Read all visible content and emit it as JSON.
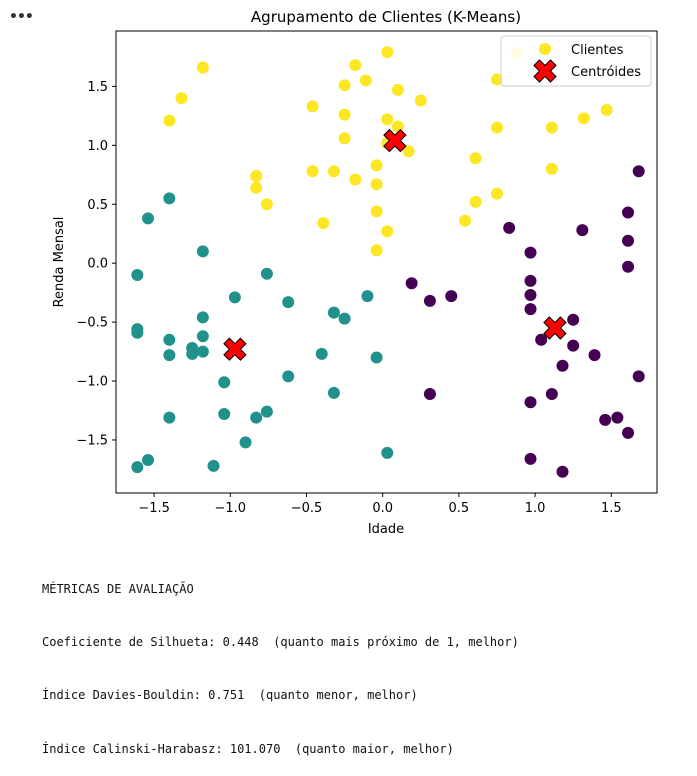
{
  "toolbar": {
    "menu_glyph": "•••"
  },
  "chart_data": {
    "type": "scatter",
    "title": "Agrupamento de Clientes (K-Means)",
    "xlabel": "Idade",
    "ylabel": "Renda Mensal",
    "xlim": [
      -1.75,
      1.8
    ],
    "ylim": [
      -1.95,
      1.97
    ],
    "xticks": [
      -1.5,
      -1.0,
      -0.5,
      0.0,
      0.5,
      1.0,
      1.5
    ],
    "xtick_labels": [
      "−1.5",
      "−1.0",
      "−0.5",
      "0.0",
      "0.5",
      "1.0",
      "1.5"
    ],
    "yticks": [
      -1.5,
      -1.0,
      -0.5,
      0.0,
      0.5,
      1.0,
      1.5
    ],
    "ytick_labels": [
      "−1.5",
      "−1.0",
      "−0.5",
      "0.0",
      "0.5",
      "1.0",
      "1.5"
    ],
    "grid": false,
    "legend_position": "top-right",
    "legend": [
      {
        "label": "Clientes",
        "marker": "circle",
        "color": "#fde725"
      },
      {
        "label": "Centróides",
        "marker": "X",
        "color": "#ff0000"
      }
    ],
    "cluster_colors": [
      "#440154",
      "#21918c",
      "#fde725"
    ],
    "centroid_color": "#ff0000",
    "series": [
      {
        "name": "cluster-0",
        "color": "#440154",
        "points": [
          [
            1.68,
            0.78
          ],
          [
            1.61,
            0.43
          ],
          [
            1.31,
            0.28
          ],
          [
            1.61,
            0.19
          ],
          [
            0.83,
            0.3
          ],
          [
            0.97,
            0.09
          ],
          [
            1.61,
            -0.03
          ],
          [
            0.97,
            -0.15
          ],
          [
            0.19,
            -0.17
          ],
          [
            0.45,
            -0.28
          ],
          [
            0.31,
            -0.32
          ],
          [
            0.97,
            -0.27
          ],
          [
            0.97,
            -0.39
          ],
          [
            1.25,
            -0.48
          ],
          [
            1.04,
            -0.65
          ],
          [
            1.25,
            -0.7
          ],
          [
            1.39,
            -0.78
          ],
          [
            1.18,
            -0.87
          ],
          [
            1.68,
            -0.96
          ],
          [
            0.31,
            -1.11
          ],
          [
            1.11,
            -1.11
          ],
          [
            0.97,
            -1.18
          ],
          [
            1.46,
            -1.33
          ],
          [
            1.54,
            -1.31
          ],
          [
            1.61,
            -1.44
          ],
          [
            0.97,
            -1.66
          ],
          [
            1.18,
            -1.77
          ]
        ]
      },
      {
        "name": "cluster-1",
        "color": "#21918c",
        "points": [
          [
            -1.4,
            0.55
          ],
          [
            -1.54,
            0.38
          ],
          [
            -1.18,
            0.1
          ],
          [
            -1.61,
            -0.1
          ],
          [
            -0.76,
            -0.09
          ],
          [
            -0.97,
            -0.29
          ],
          [
            -0.62,
            -0.33
          ],
          [
            -0.1,
            -0.28
          ],
          [
            -1.18,
            -0.46
          ],
          [
            -0.32,
            -0.42
          ],
          [
            -0.25,
            -0.47
          ],
          [
            -1.61,
            -0.56
          ],
          [
            -1.61,
            -0.59
          ],
          [
            -1.4,
            -0.65
          ],
          [
            -1.18,
            -0.62
          ],
          [
            -1.25,
            -0.72
          ],
          [
            -1.25,
            -0.77
          ],
          [
            -1.18,
            -0.75
          ],
          [
            -1.4,
            -0.78
          ],
          [
            -0.4,
            -0.77
          ],
          [
            -0.04,
            -0.8
          ],
          [
            -0.62,
            -0.96
          ],
          [
            -1.04,
            -1.01
          ],
          [
            -0.32,
            -1.1
          ],
          [
            -1.04,
            -1.28
          ],
          [
            -0.76,
            -1.26
          ],
          [
            -0.83,
            -1.31
          ],
          [
            -1.4,
            -1.31
          ],
          [
            -0.9,
            -1.52
          ],
          [
            0.03,
            -1.61
          ],
          [
            -1.54,
            -1.67
          ],
          [
            -1.61,
            -1.73
          ],
          [
            -1.11,
            -1.72
          ]
        ]
      },
      {
        "name": "cluster-2",
        "color": "#fde725",
        "points": [
          [
            0.03,
            1.79
          ],
          [
            0.88,
            1.78
          ],
          [
            -1.18,
            1.66
          ],
          [
            -0.18,
            1.68
          ],
          [
            0.75,
            1.56
          ],
          [
            -0.11,
            1.55
          ],
          [
            -0.25,
            1.51
          ],
          [
            0.1,
            1.47
          ],
          [
            -1.32,
            1.4
          ],
          [
            0.25,
            1.38
          ],
          [
            -0.46,
            1.33
          ],
          [
            1.47,
            1.3
          ],
          [
            -0.25,
            1.26
          ],
          [
            -1.4,
            1.21
          ],
          [
            0.03,
            1.22
          ],
          [
            1.32,
            1.23
          ],
          [
            0.75,
            1.15
          ],
          [
            1.11,
            1.15
          ],
          [
            0.1,
            1.16
          ],
          [
            -0.25,
            1.06
          ],
          [
            0.03,
            1.02
          ],
          [
            0.17,
            0.95
          ],
          [
            0.61,
            0.89
          ],
          [
            -0.04,
            0.83
          ],
          [
            1.11,
            0.8
          ],
          [
            -0.46,
            0.78
          ],
          [
            -0.32,
            0.78
          ],
          [
            -0.83,
            0.74
          ],
          [
            -0.18,
            0.71
          ],
          [
            -0.04,
            0.67
          ],
          [
            -0.83,
            0.64
          ],
          [
            0.75,
            0.59
          ],
          [
            0.61,
            0.52
          ],
          [
            -0.76,
            0.5
          ],
          [
            -0.04,
            0.44
          ],
          [
            0.54,
            0.36
          ],
          [
            -0.39,
            0.34
          ],
          [
            0.03,
            0.27
          ],
          [
            -0.04,
            0.11
          ]
        ]
      }
    ],
    "centroids": [
      [
        1.13,
        -0.55
      ],
      [
        -0.97,
        -0.73
      ],
      [
        0.08,
        1.04
      ]
    ]
  },
  "metrics": {
    "title": "MÉTRICAS DE AVALIAÇÃO",
    "silhouette": "Coeficiente de Silhueta: 0.448  (quanto mais próximo de 1, melhor)",
    "davies_bouldin": "Índice Davies-Bouldin: 0.751  (quanto menor, melhor)",
    "calinski_harabasz": "Índice Calinski-Harabasz: 101.070  (quanto maior, melhor)"
  }
}
